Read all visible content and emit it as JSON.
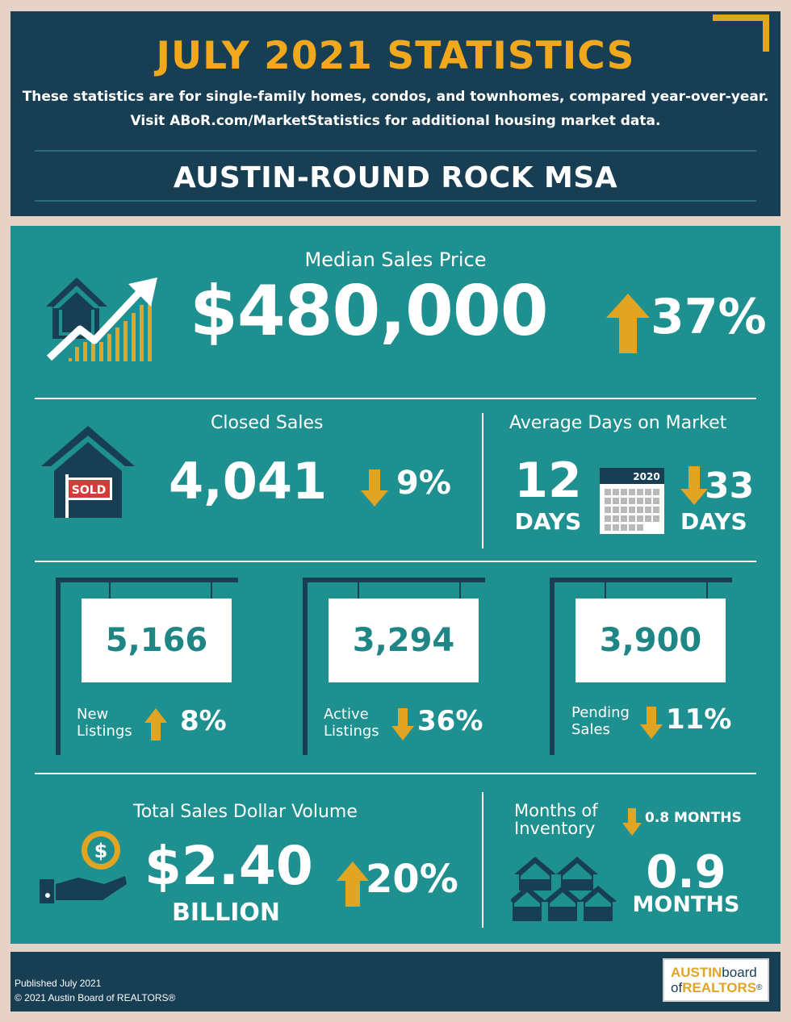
{
  "header": {
    "title": "JULY 2021 STATISTICS",
    "subtitle_line1": "These statistics are for single-family homes, condos, and townhomes, compared year-over-year.",
    "subtitle_line2": "Visit ABoR.com/MarketStatistics for additional housing market data.",
    "region": "AUSTIN-ROUND ROCK MSA"
  },
  "median": {
    "label": "Median Sales Price",
    "value": "$480,000",
    "change": "37%",
    "direction": "up"
  },
  "closed_sales": {
    "label": "Closed Sales",
    "value": "4,041",
    "change": "9%",
    "direction": "down",
    "sign_text": "SOLD"
  },
  "days_on_market": {
    "label": "Average Days on Market",
    "value": "12",
    "unit": "DAYS",
    "calendar_year": "2020",
    "change": "33",
    "change_unit": "DAYS",
    "direction": "down"
  },
  "listings": [
    {
      "value": "5,166",
      "label_line1": "New",
      "label_line2": "Listings",
      "change": "8%",
      "direction": "up"
    },
    {
      "value": "3,294",
      "label_line1": "Active",
      "label_line2": "Listings",
      "change": "36%",
      "direction": "down"
    },
    {
      "value": "3,900",
      "label_line1": "Pending",
      "label_line2": "Sales",
      "change": "11%",
      "direction": "down"
    }
  ],
  "volume": {
    "label": "Total Sales Dollar Volume",
    "value": "$2.40",
    "unit": "BILLION",
    "change": "20%",
    "direction": "up"
  },
  "inventory": {
    "label_line1": "Months of",
    "label_line2": "Inventory",
    "change": "0.8 MONTHS",
    "direction": "down",
    "value": "0.9",
    "unit": "MONTHS"
  },
  "footer": {
    "published": "Published July 2021",
    "copyright": "© 2021 Austin Board of REALTORS®",
    "logo_part1": "AUSTIN",
    "logo_part2": "board",
    "logo_part3": "of",
    "logo_part4": "REALTORS"
  },
  "colors": {
    "navy": "#173e53",
    "teal": "#1f9090",
    "gold": "#f2a81d"
  }
}
